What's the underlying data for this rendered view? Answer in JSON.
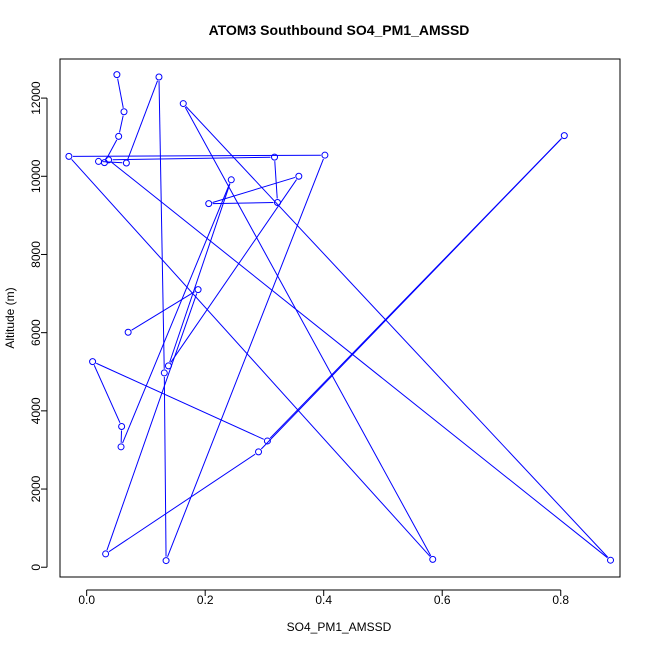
{
  "chart_data": {
    "type": "line",
    "title": "ATOM3 Southbound SO4_PM1_AMSSD",
    "xlabel": "SO4_PM1_AMSSD",
    "ylabel": "Altitude (m)",
    "xlim": [
      -0.045,
      0.9
    ],
    "ylim": [
      -250,
      13000
    ],
    "xticks": [
      0.0,
      0.2,
      0.4,
      0.6,
      0.8
    ],
    "xtick_labels": [
      "0.0",
      "0.2",
      "0.4",
      "0.6",
      "0.8"
    ],
    "yticks": [
      0,
      2000,
      4000,
      6000,
      8000,
      10000,
      12000
    ],
    "ytick_labels": [
      "0",
      "2000",
      "4000",
      "6000",
      "8000",
      "10000",
      "12000"
    ],
    "line_color": "#0000ff",
    "marker": "open-circle",
    "points": [
      {
        "x": 0.051,
        "y": 12600
      },
      {
        "x": 0.063,
        "y": 11650
      },
      {
        "x": 0.054,
        "y": 11020
      },
      {
        "x": 0.03,
        "y": 10350
      },
      {
        "x": 0.02,
        "y": 10380
      },
      {
        "x": 0.067,
        "y": 10340
      },
      {
        "x": 0.122,
        "y": 12540
      },
      {
        "x": 0.131,
        "y": 4970
      },
      {
        "x": 0.134,
        "y": 170
      },
      {
        "x": 0.402,
        "y": 10540
      },
      {
        "x": -0.03,
        "y": 10510
      },
      {
        "x": 0.584,
        "y": 200
      },
      {
        "x": 0.163,
        "y": 11860
      },
      {
        "x": 0.884,
        "y": 180
      },
      {
        "x": 0.037,
        "y": 10420
      },
      {
        "x": 0.317,
        "y": 10490
      },
      {
        "x": 0.322,
        "y": 9330
      },
      {
        "x": 0.206,
        "y": 9300
      },
      {
        "x": 0.358,
        "y": 10000
      },
      {
        "x": 0.138,
        "y": 5150
      },
      {
        "x": 0.244,
        "y": 9910
      },
      {
        "x": 0.058,
        "y": 3080
      },
      {
        "x": 0.059,
        "y": 3600
      },
      {
        "x": 0.01,
        "y": 5260
      },
      {
        "x": 0.305,
        "y": 3230
      },
      {
        "x": 0.806,
        "y": 11040
      },
      {
        "x": 0.29,
        "y": 2950
      },
      {
        "x": 0.032,
        "y": 340
      },
      {
        "x": 0.188,
        "y": 7100
      },
      {
        "x": 0.07,
        "y": 6010
      }
    ]
  }
}
